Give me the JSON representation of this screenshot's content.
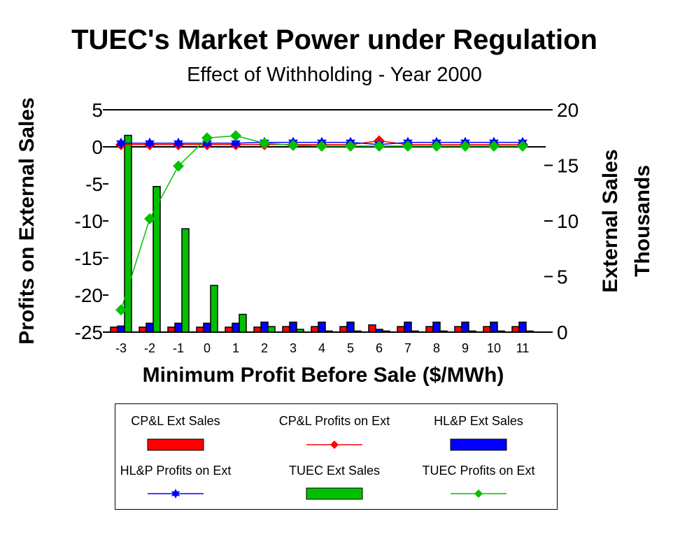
{
  "chart_data": {
    "type": "bar",
    "title": "TUEC's Market Power under Regulation",
    "subtitle": "Effect of Withholding - Year 2000",
    "xlabel": "Minimum Profit Before Sale ($/MWh)",
    "ylabel": "Profits on External Sales",
    "y2label": "External Sales",
    "y2label_units": "Thousands",
    "categories": [
      "-3",
      "-2",
      "-1",
      "0",
      "1",
      "2",
      "3",
      "4",
      "5",
      "6",
      "7",
      "8",
      "9",
      "10",
      "11"
    ],
    "ylim": [
      -25,
      5
    ],
    "yticks": [
      "5",
      "0",
      "-5",
      "-10",
      "-15",
      "-20",
      "-25"
    ],
    "y2lim": [
      0,
      20
    ],
    "y2ticks": [
      "20",
      "15",
      "10",
      "5",
      "0"
    ],
    "legend_position": "bottom",
    "series": [
      {
        "name": "CP&L Ext Sales",
        "kind": "bar",
        "axis": "right",
        "color": "#ff0000",
        "values": [
          0.45,
          0.45,
          0.45,
          0.45,
          0.45,
          0.45,
          0.5,
          0.5,
          0.5,
          0.65,
          0.5,
          0.5,
          0.5,
          0.5,
          0.5
        ]
      },
      {
        "name": "CP&L Profits on Ext",
        "kind": "line",
        "marker": "diamond",
        "axis": "left",
        "color": "#ff0000",
        "values": [
          0.3,
          0.3,
          0.3,
          0.3,
          0.3,
          0.3,
          0.3,
          0.3,
          0.3,
          0.8,
          0.3,
          0.3,
          0.3,
          0.3,
          0.3
        ]
      },
      {
        "name": "HL&P Ext Sales",
        "kind": "bar",
        "axis": "right",
        "color": "#0000ff",
        "values": [
          0.55,
          0.8,
          0.8,
          0.8,
          0.8,
          0.9,
          0.9,
          0.9,
          0.9,
          0.25,
          0.9,
          0.9,
          0.9,
          0.9,
          0.9
        ]
      },
      {
        "name": "HL&P Profits on Ext",
        "kind": "line",
        "marker": "star",
        "axis": "left",
        "color": "#0000ff",
        "values": [
          0.5,
          0.5,
          0.5,
          0.5,
          0.5,
          0.6,
          0.6,
          0.6,
          0.6,
          0.3,
          0.6,
          0.6,
          0.6,
          0.6,
          0.6
        ]
      },
      {
        "name": "TUEC Ext Sales",
        "kind": "bar",
        "axis": "right",
        "color": "#00c000",
        "values": [
          17.7,
          13.1,
          9.3,
          4.2,
          1.6,
          0.5,
          0.25,
          0.1,
          0.1,
          0.1,
          0.1,
          0.1,
          0.1,
          0.1,
          0.1
        ]
      },
      {
        "name": "TUEC Profits on Ext",
        "kind": "line",
        "marker": "diamond",
        "axis": "left",
        "color": "#00c000",
        "values": [
          -22.0,
          -9.7,
          -2.6,
          1.2,
          1.5,
          0.5,
          0.2,
          0.1,
          0.1,
          0.1,
          0.1,
          0.1,
          0.1,
          0.1,
          0.1
        ]
      }
    ]
  }
}
